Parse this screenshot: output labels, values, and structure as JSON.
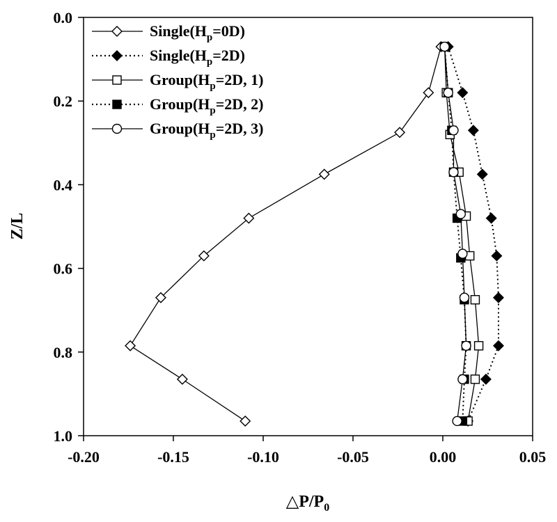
{
  "chart_data": {
    "type": "line",
    "title": "",
    "xlabel": "△P/P",
    "xlabel_sub": "0",
    "ylabel": "Z/L",
    "xlim": [
      -0.2,
      0.05
    ],
    "ylim": [
      0.0,
      1.0
    ],
    "y_inverted": true,
    "x_ticks": [
      "-0.20",
      "-0.15",
      "-0.10",
      "-0.05",
      "0.00",
      "0.05"
    ],
    "y_ticks": [
      "0.0",
      "0.2",
      "0.4",
      "0.6",
      "0.8",
      "1.0"
    ],
    "grid": false,
    "legend_position": "top-left",
    "series": [
      {
        "name": "Single(H=0D)",
        "legend_parts": [
          "Single(H",
          "p",
          "=0D)"
        ],
        "marker": "diamond-open",
        "line": "solid",
        "x": [
          -0.001,
          -0.008,
          -0.024,
          -0.066,
          -0.108,
          -0.133,
          -0.157,
          -0.174,
          -0.145,
          -0.11
        ],
        "y": [
          0.07,
          0.18,
          0.275,
          0.375,
          0.48,
          0.57,
          0.67,
          0.785,
          0.865,
          0.965
        ]
      },
      {
        "name": "Single(H=2D)",
        "legend_parts": [
          "Single(H",
          "p",
          "=2D)"
        ],
        "marker": "diamond-filled",
        "line": "dotted",
        "x": [
          0.003,
          0.011,
          0.017,
          0.022,
          0.027,
          0.03,
          0.031,
          0.031,
          0.024,
          0.014
        ],
        "y": [
          0.07,
          0.18,
          0.27,
          0.375,
          0.48,
          0.57,
          0.67,
          0.785,
          0.865,
          0.965
        ]
      },
      {
        "name": "Group(H=2D, 1)",
        "legend_parts": [
          "Group(H",
          "p",
          "=2D, 1)"
        ],
        "marker": "square-open",
        "line": "solid",
        "x": [
          0.001,
          0.002,
          0.004,
          0.009,
          0.013,
          0.015,
          0.018,
          0.02,
          0.018,
          0.014
        ],
        "y": [
          0.07,
          0.18,
          0.28,
          0.37,
          0.475,
          0.57,
          0.675,
          0.785,
          0.865,
          0.965
        ]
      },
      {
        "name": "Group(H=2D, 2)",
        "legend_parts": [
          "Group(H",
          "p",
          "=2D, 2)"
        ],
        "marker": "square-filled",
        "line": "dotted",
        "x": [
          0.001,
          0.003,
          0.005,
          0.006,
          0.008,
          0.01,
          0.012,
          0.013,
          0.012,
          0.011
        ],
        "y": [
          0.07,
          0.18,
          0.27,
          0.37,
          0.48,
          0.575,
          0.675,
          0.785,
          0.865,
          0.965
        ]
      },
      {
        "name": "Group(H=2D, 3)",
        "legend_parts": [
          "Group(H",
          "p",
          "=2D, 3)"
        ],
        "marker": "circle-open",
        "line": "solid",
        "x": [
          0.001,
          0.003,
          0.006,
          0.006,
          0.01,
          0.011,
          0.012,
          0.013,
          0.011,
          0.008
        ],
        "y": [
          0.07,
          0.18,
          0.27,
          0.37,
          0.47,
          0.565,
          0.67,
          0.785,
          0.865,
          0.965
        ]
      }
    ]
  }
}
